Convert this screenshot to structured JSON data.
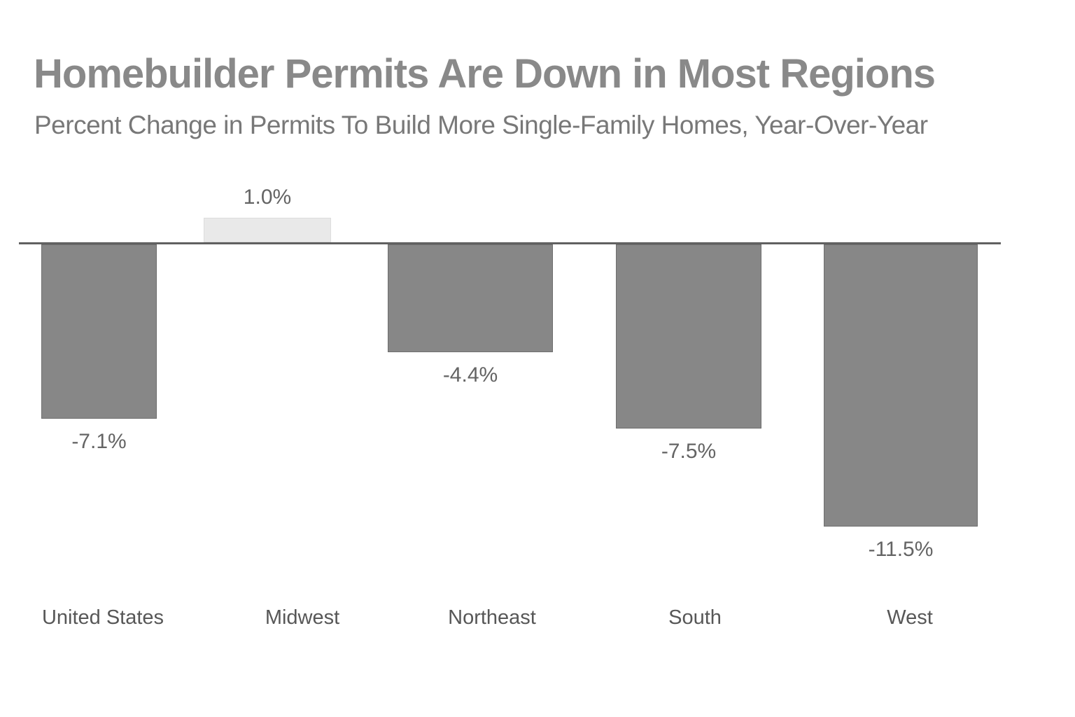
{
  "chart_data": {
    "type": "bar",
    "title": "Homebuilder Permits Are Down in Most Regions",
    "subtitle": "Percent Change in Permits To Build More Single-Family Homes, Year-Over-Year",
    "categories": [
      "United States",
      "Midwest",
      "Northeast",
      "South",
      "West"
    ],
    "values": [
      -7.1,
      1.0,
      -4.4,
      -7.5,
      -11.5
    ],
    "value_labels": [
      "-7.1%",
      "1.0%",
      "-4.4%",
      "-7.5%",
      "-11.5%"
    ],
    "unit": "percent",
    "baseline_value": 0,
    "ylim": [
      -12.5,
      2
    ],
    "colors": {
      "negative_bar": "#878787",
      "negative_bar_border": "#6e6e6e",
      "positive_bar": "#e9e9e9",
      "positive_bar_border": "#dddddd",
      "axis_line": "#606060",
      "title_text": "#898989",
      "subtitle_text": "#787878",
      "value_label_text": "#646464",
      "category_label_text": "#575757"
    },
    "layout_hints": {
      "orientation": "vertical",
      "grid": "off",
      "legend": "none",
      "value_label_position": "outside-end",
      "category_label_position": "bottom"
    }
  }
}
